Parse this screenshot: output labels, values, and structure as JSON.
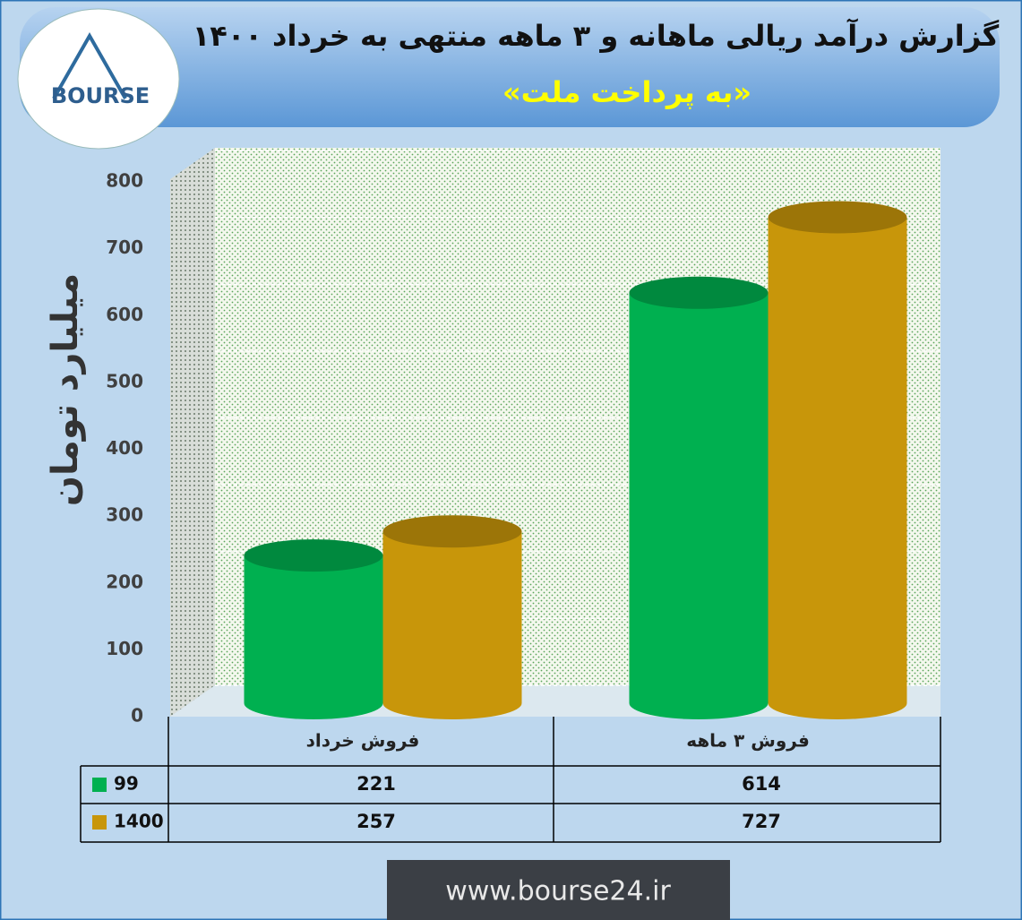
{
  "chart_data": {
    "type": "bar3d",
    "title": "گزارش درآمد ریالی ماهانه و ۳ ماهه منتهی به خرداد ۱۴۰۰",
    "subtitle": "«به پرداخت ملت»",
    "logo": "BOURSE",
    "y_label": "میلیارد تومان",
    "categories": [
      "فروش خرداد",
      "فروش ۳ ماهه"
    ],
    "series": [
      {
        "name": "99",
        "color": "#00b050",
        "values": [
          221,
          614
        ]
      },
      {
        "name": "1400",
        "color": "#c8960a",
        "values": [
          257,
          727
        ]
      }
    ],
    "ylim": [
      0,
      800
    ],
    "yticks": [
      0,
      100,
      200,
      300,
      400,
      500,
      600,
      700,
      800
    ],
    "grid": true,
    "footer": "www.bourse24.ir"
  }
}
